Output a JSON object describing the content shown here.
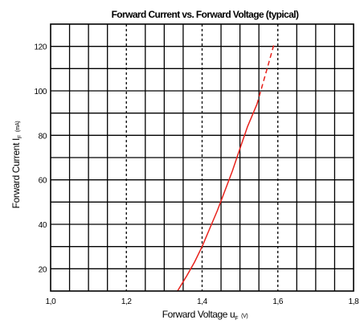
{
  "chart_data": {
    "type": "line",
    "title": "Forward Current vs. Forward Voltage (typical)",
    "xlabel": {
      "main": "Forward Voltage u",
      "sub": "F",
      "unit": "(V)"
    },
    "ylabel": {
      "main": "Forward Current I",
      "sub": "F",
      "unit": "(mA)"
    },
    "xlim": [
      1.0,
      1.8
    ],
    "ylim": [
      10,
      130
    ],
    "x_ticks": [
      "1,0",
      "1,2",
      "1,4",
      "1,6",
      "1,8"
    ],
    "x_tick_values": [
      1.0,
      1.2,
      1.4,
      1.6,
      1.8
    ],
    "y_ticks": [
      "20",
      "40",
      "60",
      "80",
      "100",
      "120"
    ],
    "y_tick_values": [
      20,
      40,
      60,
      80,
      100,
      120
    ],
    "grid": true,
    "line_color": "#e8221c",
    "series": [
      {
        "style": "solid",
        "x": [
          1.335,
          1.36,
          1.38,
          1.4,
          1.42,
          1.44,
          1.46,
          1.48,
          1.5,
          1.52,
          1.545
        ],
        "y": [
          10,
          17,
          23,
          30,
          38,
          46,
          55,
          64,
          74,
          84,
          94
        ]
      },
      {
        "style": "dashed",
        "x": [
          1.545,
          1.56,
          1.575,
          1.59
        ],
        "y": [
          94,
          103,
          112,
          121
        ]
      }
    ]
  }
}
